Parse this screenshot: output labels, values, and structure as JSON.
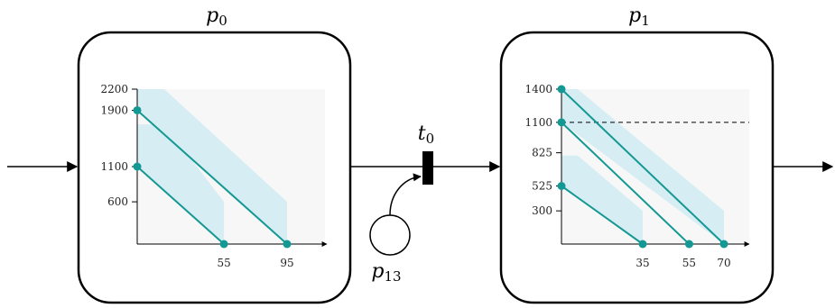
{
  "places": [
    {
      "id": "p0",
      "label": "p",
      "sub": "0",
      "plot": {
        "y_ticks": [
          600,
          1100,
          1900,
          2200
        ],
        "x_ticks": [
          55,
          95
        ],
        "y_max": 2200,
        "x_max": 120,
        "lines": [
          {
            "y0": 1900,
            "x1": 95
          },
          {
            "y0": 1100,
            "x1": 55
          }
        ],
        "bands": [
          {
            "y_top": 2200,
            "y_bot": 1900,
            "x_end": 95,
            "y_end": 600
          },
          {
            "y_top": 1700,
            "y_bot": 1100,
            "x_end": 55,
            "y_end": 600
          }
        ],
        "dashed_y": null
      }
    },
    {
      "id": "p1",
      "label": "p",
      "sub": "1",
      "plot": {
        "y_ticks": [
          300,
          525,
          825,
          1100,
          1400
        ],
        "x_ticks": [
          35,
          55,
          70
        ],
        "y_max": 1400,
        "x_max": 80,
        "lines": [
          {
            "y0": 1400,
            "x1": 70
          },
          {
            "y0": 1100,
            "x1": 55
          },
          {
            "y0": 525,
            "x1": 35
          }
        ],
        "bands": [
          {
            "y_top": 1400,
            "y_bot": 1100,
            "x_end": 70,
            "y_end": 300
          },
          {
            "y_top": 800,
            "y_bot": 525,
            "x_end": 35,
            "y_end": 300
          }
        ],
        "dashed_y": 1100
      }
    }
  ],
  "transition": {
    "label": "t",
    "sub": "0"
  },
  "side_place": {
    "label": "p",
    "sub": "13"
  },
  "colors": {
    "line": "#149893",
    "band": "#d6edf3",
    "plot_bg": "#f7f7f7",
    "stroke": "#000000"
  }
}
